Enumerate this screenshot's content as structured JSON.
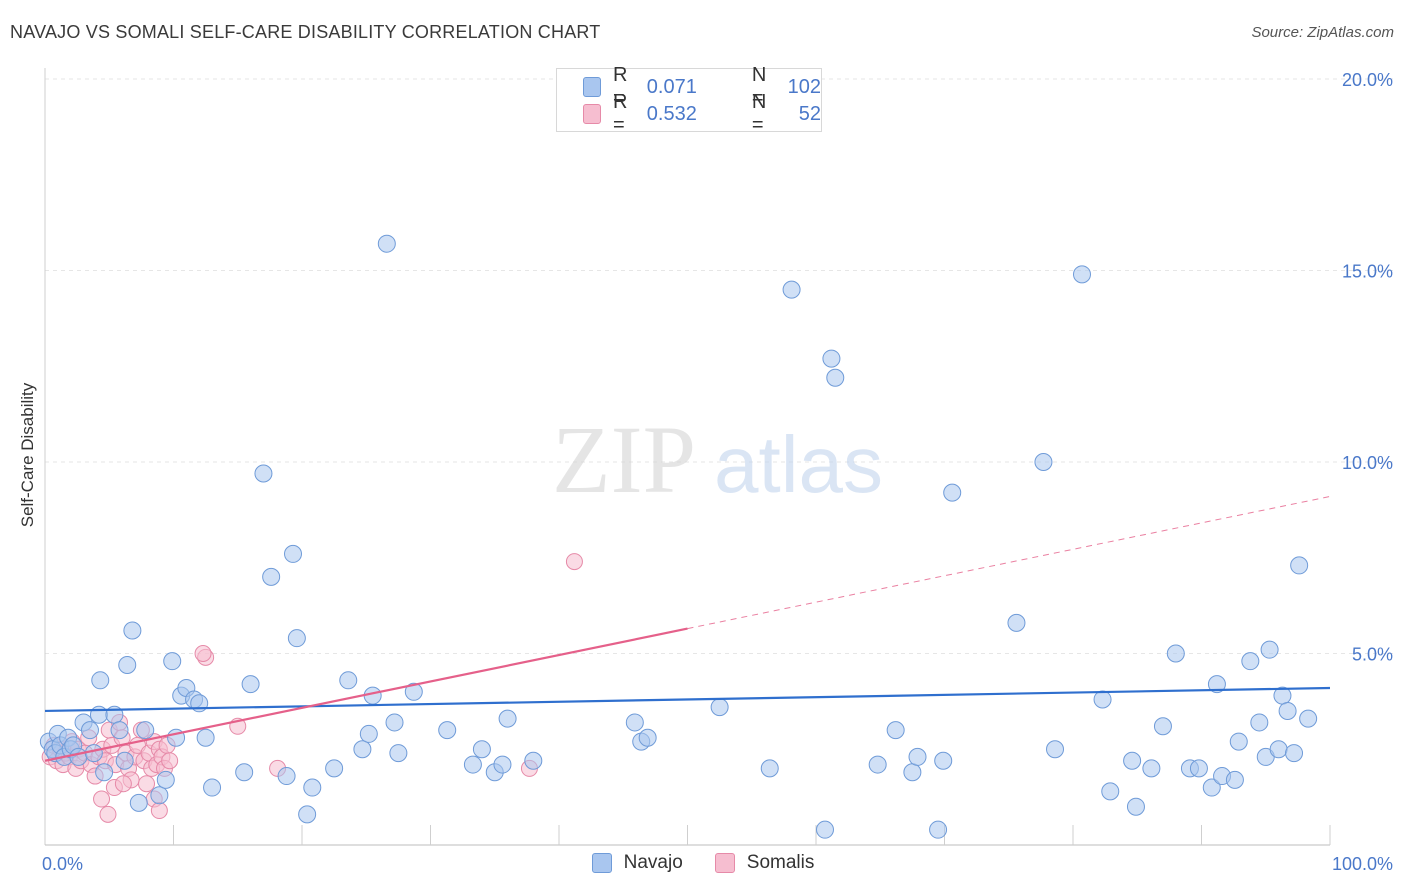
{
  "header": {
    "title": "NAVAJO VS SOMALI SELF-CARE DISABILITY CORRELATION CHART",
    "source": "Source: ZipAtlas.com"
  },
  "watermark": {
    "zip": "ZIP",
    "atlas": "atlas"
  },
  "colors": {
    "navajo_fill": "#a9c6ef",
    "navajo_stroke": "#6f9bd8",
    "navajo_line": "#2f6fce",
    "somali_fill": "#f6bed0",
    "somali_stroke": "#e68aa8",
    "somali_line": "#e5608a",
    "grid": "#e6e6e6",
    "tick_label": "#4a78c9"
  },
  "legend": {
    "rows": [
      {
        "series": "Navajo",
        "r_label": "R =",
        "r_value": "0.071",
        "n_label": "N =",
        "n_value": "102"
      },
      {
        "series": "Somalis",
        "r_label": "R =",
        "r_value": "0.532",
        "n_label": "N =",
        "n_value": "52"
      }
    ]
  },
  "bottom_legend": {
    "navajo": "Navajo",
    "somalis": "Somalis"
  },
  "chart_data": {
    "type": "scatter",
    "title": "NAVAJO VS SOMALI SELF-CARE DISABILITY CORRELATION CHART",
    "xlabel": "",
    "ylabel": "Self-Care Disability",
    "xlim": [
      0,
      100
    ],
    "ylim": [
      0,
      20
    ],
    "x_tick_labels": [
      {
        "value": 0,
        "label": "0.0%"
      },
      {
        "value": 100,
        "label": "100.0%"
      }
    ],
    "y_tick_labels": [
      {
        "value": 5,
        "label": "5.0%"
      },
      {
        "value": 10,
        "label": "10.0%"
      },
      {
        "value": 15,
        "label": "15.0%"
      },
      {
        "value": 20,
        "label": "20.0%"
      }
    ],
    "series": [
      {
        "name": "Navajo",
        "trend": {
          "x": [
            0,
            100
          ],
          "y": [
            3.5,
            4.1
          ],
          "dashed_from": null
        },
        "points": [
          [
            0.3,
            2.7
          ],
          [
            0.6,
            2.5
          ],
          [
            0.8,
            2.4
          ],
          [
            1.0,
            2.9
          ],
          [
            1.2,
            2.6
          ],
          [
            1.5,
            2.3
          ],
          [
            1.8,
            2.8
          ],
          [
            2.0,
            2.5
          ],
          [
            2.2,
            2.6
          ],
          [
            2.6,
            2.3
          ],
          [
            3.0,
            3.2
          ],
          [
            3.5,
            3.0
          ],
          [
            3.8,
            2.4
          ],
          [
            4.2,
            3.4
          ],
          [
            4.3,
            4.3
          ],
          [
            4.6,
            1.9
          ],
          [
            5.4,
            3.4
          ],
          [
            5.8,
            3.0
          ],
          [
            6.2,
            2.2
          ],
          [
            6.4,
            4.7
          ],
          [
            6.8,
            5.6
          ],
          [
            7.3,
            1.1
          ],
          [
            7.8,
            3.0
          ],
          [
            8.9,
            1.3
          ],
          [
            9.4,
            1.7
          ],
          [
            9.9,
            4.8
          ],
          [
            10.2,
            2.8
          ],
          [
            10.6,
            3.9
          ],
          [
            11.0,
            4.1
          ],
          [
            11.6,
            3.8
          ],
          [
            12.0,
            3.7
          ],
          [
            12.5,
            2.8
          ],
          [
            13.0,
            1.5
          ],
          [
            15.5,
            1.9
          ],
          [
            16.0,
            4.2
          ],
          [
            17.0,
            9.7
          ],
          [
            17.6,
            7.0
          ],
          [
            18.8,
            1.8
          ],
          [
            19.3,
            7.6
          ],
          [
            19.6,
            5.4
          ],
          [
            20.4,
            0.8
          ],
          [
            20.8,
            1.5
          ],
          [
            22.5,
            2.0
          ],
          [
            23.6,
            4.3
          ],
          [
            24.7,
            2.5
          ],
          [
            25.2,
            2.9
          ],
          [
            25.5,
            3.9
          ],
          [
            26.6,
            15.7
          ],
          [
            27.2,
            3.2
          ],
          [
            27.5,
            2.4
          ],
          [
            28.7,
            4.0
          ],
          [
            31.3,
            3.0
          ],
          [
            33.3,
            2.1
          ],
          [
            34.0,
            2.5
          ],
          [
            35.0,
            1.9
          ],
          [
            35.6,
            2.1
          ],
          [
            36.0,
            3.3
          ],
          [
            38.0,
            2.2
          ],
          [
            45.9,
            3.2
          ],
          [
            46.4,
            2.7
          ],
          [
            46.9,
            2.8
          ],
          [
            52.5,
            3.6
          ],
          [
            56.4,
            2.0
          ],
          [
            58.1,
            14.5
          ],
          [
            60.7,
            0.4
          ],
          [
            61.2,
            12.7
          ],
          [
            61.5,
            12.2
          ],
          [
            64.8,
            2.1
          ],
          [
            66.2,
            3.0
          ],
          [
            67.5,
            1.9
          ],
          [
            67.9,
            2.3
          ],
          [
            69.5,
            0.4
          ],
          [
            69.9,
            2.2
          ],
          [
            70.6,
            9.2
          ],
          [
            75.6,
            5.8
          ],
          [
            77.7,
            10.0
          ],
          [
            78.6,
            2.5
          ],
          [
            80.7,
            14.9
          ],
          [
            82.3,
            3.8
          ],
          [
            82.9,
            1.4
          ],
          [
            84.6,
            2.2
          ],
          [
            84.9,
            1.0
          ],
          [
            86.1,
            2.0
          ],
          [
            87.0,
            3.1
          ],
          [
            88.0,
            5.0
          ],
          [
            89.1,
            2.0
          ],
          [
            89.8,
            2.0
          ],
          [
            90.8,
            1.5
          ],
          [
            91.2,
            4.2
          ],
          [
            91.6,
            1.8
          ],
          [
            92.6,
            1.7
          ],
          [
            92.9,
            2.7
          ],
          [
            93.8,
            4.8
          ],
          [
            94.5,
            3.2
          ],
          [
            95.0,
            2.3
          ],
          [
            95.3,
            5.1
          ],
          [
            96.0,
            2.5
          ],
          [
            96.3,
            3.9
          ],
          [
            96.7,
            3.5
          ],
          [
            97.2,
            2.4
          ],
          [
            97.6,
            7.3
          ],
          [
            98.3,
            3.3
          ]
        ]
      },
      {
        "name": "Somalis",
        "trend": {
          "x": [
            0,
            100
          ],
          "y": [
            2.2,
            9.1
          ],
          "dashed_from": 50
        },
        "points": [
          [
            0.4,
            2.3
          ],
          [
            0.7,
            2.6
          ],
          [
            0.9,
            2.2
          ],
          [
            1.2,
            2.5
          ],
          [
            1.4,
            2.1
          ],
          [
            1.6,
            2.4
          ],
          [
            1.9,
            2.3
          ],
          [
            2.1,
            2.7
          ],
          [
            2.4,
            2.0
          ],
          [
            2.6,
            2.5
          ],
          [
            2.8,
            2.2
          ],
          [
            3.1,
            2.4
          ],
          [
            3.4,
            2.8
          ],
          [
            3.6,
            2.1
          ],
          [
            3.9,
            1.8
          ],
          [
            4.2,
            2.3
          ],
          [
            4.5,
            2.5
          ],
          [
            4.7,
            2.2
          ],
          [
            5.0,
            3.0
          ],
          [
            5.2,
            2.6
          ],
          [
            5.5,
            2.1
          ],
          [
            5.8,
            3.2
          ],
          [
            6.0,
            2.8
          ],
          [
            6.3,
            2.4
          ],
          [
            6.5,
            2.0
          ],
          [
            6.7,
            1.7
          ],
          [
            7.0,
            2.3
          ],
          [
            7.2,
            2.6
          ],
          [
            7.5,
            3.0
          ],
          [
            7.7,
            2.2
          ],
          [
            7.9,
            1.6
          ],
          [
            8.1,
            2.4
          ],
          [
            8.3,
            2.0
          ],
          [
            8.5,
            2.7
          ],
          [
            8.7,
            2.1
          ],
          [
            8.9,
            2.5
          ],
          [
            9.1,
            2.3
          ],
          [
            9.3,
            2.0
          ],
          [
            9.5,
            2.6
          ],
          [
            9.7,
            2.2
          ],
          [
            4.4,
            1.2
          ],
          [
            4.9,
            0.8
          ],
          [
            5.4,
            1.5
          ],
          [
            6.1,
            1.6
          ],
          [
            8.5,
            1.2
          ],
          [
            8.9,
            0.9
          ],
          [
            12.5,
            4.9
          ],
          [
            12.3,
            5.0
          ],
          [
            15.0,
            3.1
          ],
          [
            18.1,
            2.0
          ],
          [
            37.7,
            2.0
          ],
          [
            41.2,
            7.4
          ]
        ]
      }
    ]
  }
}
